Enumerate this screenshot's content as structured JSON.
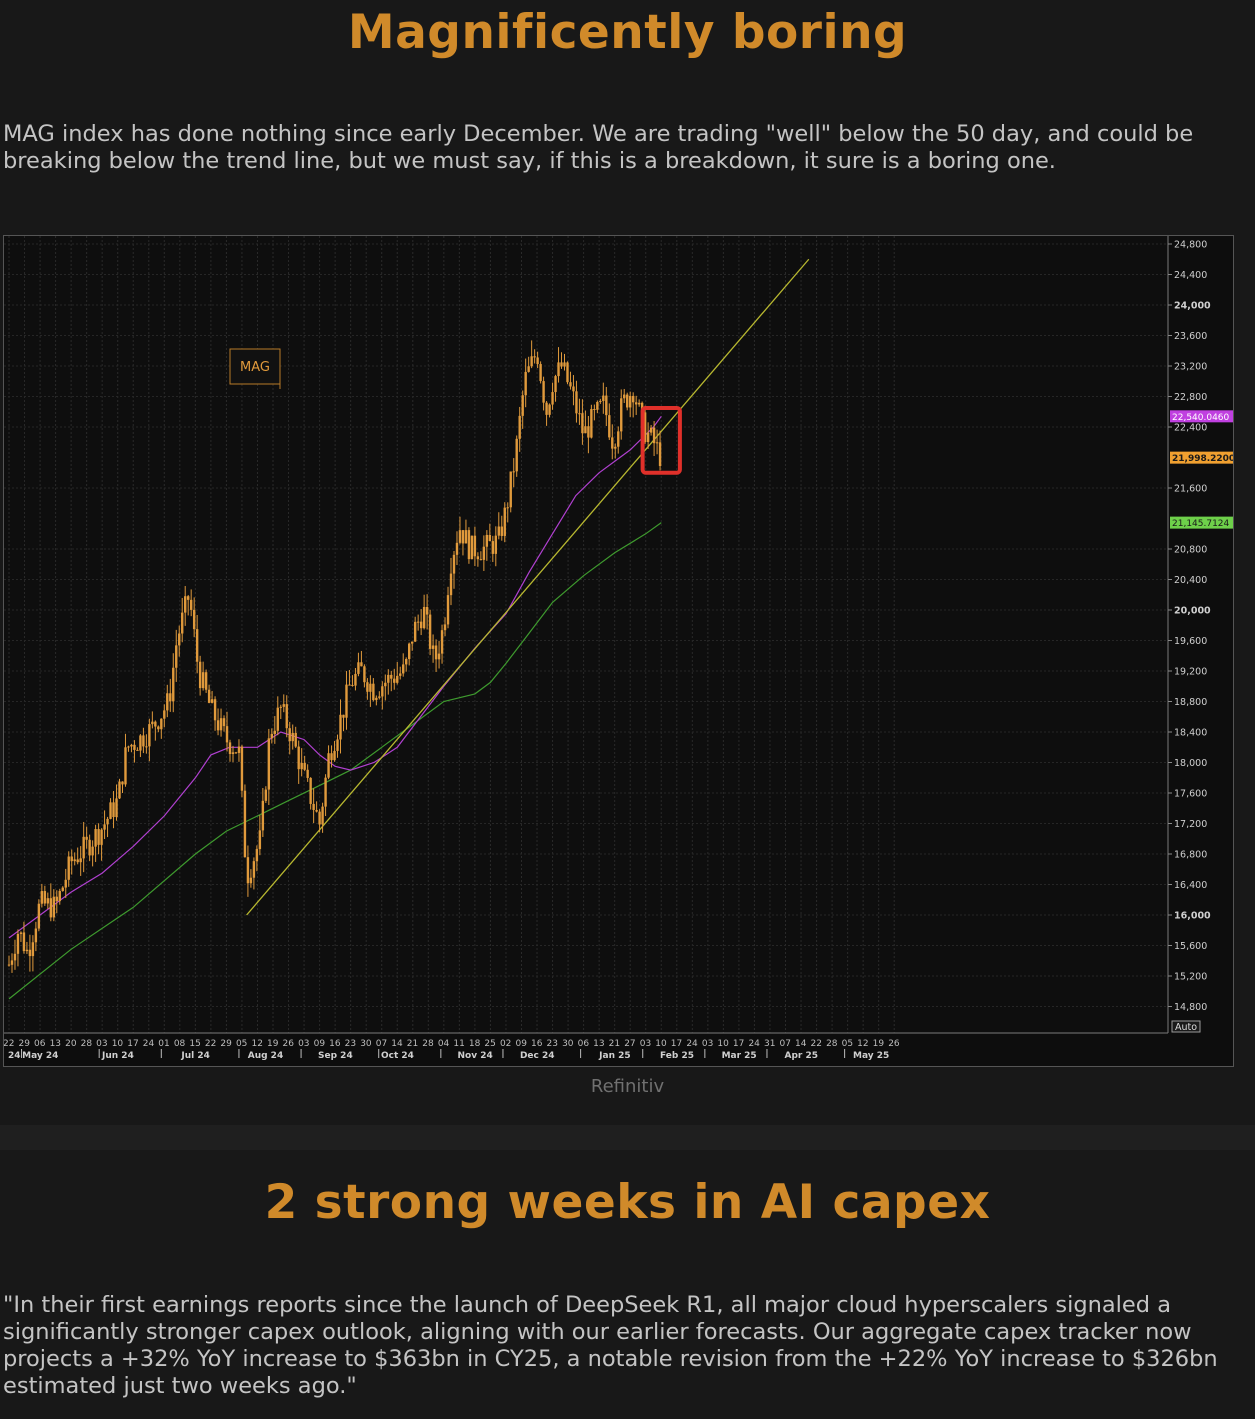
{
  "section1": {
    "title": "Magnificently boring",
    "body": "MAG index has done nothing since early December. We are trading \"well\" below the 50 day, and could be breaking below the trend line, but we must say, if this is a breakdown, it sure is a boring one.",
    "source": "Refinitiv"
  },
  "section2": {
    "title": "2 strong weeks in AI capex",
    "body": "\"In their first earnings reports since the launch of DeepSeek R1, all major cloud hyperscalers signaled a significantly stronger capex outlook, aligning with our earlier forecasts. Our aggregate capex tracker now projects a +32% YoY increase to $363bn in CY25, a notable revision from the +22% YoY increase to $326bn estimated just two weeks ago.\""
  },
  "colors": {
    "title": "#d08a2a",
    "candle": "#e09a3c",
    "ma50": "#b040d0",
    "ma200": "#3e9a2e",
    "trend": "#b8b830",
    "highlight": "#e0302a",
    "tag_ma50": "#c040e0",
    "tag_price": "#f0a030",
    "tag_ma200": "#6ed04a"
  },
  "chart_data": {
    "type": "candlestick",
    "series_name": "MAG",
    "source": "Refinitiv",
    "ylim": [
      14600,
      24900
    ],
    "y_ticks": [
      {
        "v": 24800,
        "label": "24,800",
        "bold": false
      },
      {
        "v": 24400,
        "label": "24,400",
        "bold": false
      },
      {
        "v": 24000,
        "label": "24,000",
        "bold": true
      },
      {
        "v": 23600,
        "label": "23,600",
        "bold": false
      },
      {
        "v": 23200,
        "label": "23,200",
        "bold": false
      },
      {
        "v": 22800,
        "label": "22,800",
        "bold": false
      },
      {
        "v": 22400,
        "label": "22,400",
        "bold": false
      },
      {
        "v": 21600,
        "label": "21,600",
        "bold": false
      },
      {
        "v": 20800,
        "label": "20,800",
        "bold": false
      },
      {
        "v": 20400,
        "label": "20,400",
        "bold": false
      },
      {
        "v": 20000,
        "label": "20,000",
        "bold": true
      },
      {
        "v": 19600,
        "label": "19,600",
        "bold": false
      },
      {
        "v": 19200,
        "label": "19,200",
        "bold": false
      },
      {
        "v": 18800,
        "label": "18,800",
        "bold": false
      },
      {
        "v": 18400,
        "label": "18,400",
        "bold": false
      },
      {
        "v": 18000,
        "label": "18,000",
        "bold": false
      },
      {
        "v": 17600,
        "label": "17,600",
        "bold": false
      },
      {
        "v": 17200,
        "label": "17,200",
        "bold": false
      },
      {
        "v": 16800,
        "label": "16,800",
        "bold": false
      },
      {
        "v": 16400,
        "label": "16,400",
        "bold": false
      },
      {
        "v": 16000,
        "label": "16,000",
        "bold": true
      },
      {
        "v": 15600,
        "label": "15,600",
        "bold": false
      },
      {
        "v": 15200,
        "label": "15,200",
        "bold": false
      },
      {
        "v": 14800,
        "label": "14,800",
        "bold": false
      }
    ],
    "y_scale_button": "Auto",
    "x_days": [
      "22",
      "29",
      "06",
      "13",
      "20",
      "28",
      "03",
      "10",
      "17",
      "24",
      "01",
      "08",
      "15",
      "22",
      "29",
      "05",
      "12",
      "19",
      "26",
      "03",
      "09",
      "16",
      "23",
      "30",
      "07",
      "14",
      "21",
      "28",
      "04",
      "11",
      "18",
      "25",
      "02",
      "09",
      "16",
      "23",
      "30",
      "06",
      "13",
      "21",
      "27",
      "03",
      "10",
      "17",
      "24",
      "03",
      "10",
      "17",
      "24",
      "31",
      "07",
      "14",
      "22",
      "28",
      "05",
      "12",
      "19",
      "26"
    ],
    "x_months": [
      {
        "label": "24",
        "at": 0
      },
      {
        "label": "May 24",
        "at": 1.5
      },
      {
        "label": "Jun 24",
        "at": 6.5
      },
      {
        "label": "Jul 24",
        "at": 11.5
      },
      {
        "label": "Aug 24",
        "at": 16
      },
      {
        "label": "Sep 24",
        "at": 20.5
      },
      {
        "label": "Oct 24",
        "at": 24.5
      },
      {
        "label": "Nov 24",
        "at": 29.5
      },
      {
        "label": "Dec 24",
        "at": 33.5
      },
      {
        "label": "Jan 25",
        "at": 38.5
      },
      {
        "label": "Feb 25",
        "at": 42.5
      },
      {
        "label": "Mar 25",
        "at": 46.5
      },
      {
        "label": "Apr 25",
        "at": 50.5
      },
      {
        "label": "May 25",
        "at": 55
      }
    ],
    "x_month_boundaries": [
      1,
      6,
      10,
      15,
      19,
      24,
      28,
      32,
      37,
      41,
      45,
      49,
      54
    ],
    "price_path": [
      [
        0,
        15350
      ],
      [
        0.6,
        15800
      ],
      [
        1.2,
        15500
      ],
      [
        2,
        16150
      ],
      [
        3,
        16100
      ],
      [
        4,
        16700
      ],
      [
        5,
        16900
      ],
      [
        6,
        17150
      ],
      [
        7,
        17500
      ],
      [
        7.6,
        18200
      ],
      [
        8.4,
        18300
      ],
      [
        9.2,
        18450
      ],
      [
        10.3,
        18800
      ],
      [
        10.8,
        19600
      ],
      [
        11.6,
        20200
      ],
      [
        12.2,
        19200
      ],
      [
        13,
        18700
      ],
      [
        14,
        18300
      ],
      [
        14.8,
        18150
      ],
      [
        15.3,
        16500
      ],
      [
        16.2,
        17000
      ],
      [
        16.8,
        18400
      ],
      [
        17.5,
        18700
      ],
      [
        18.2,
        18350
      ],
      [
        19,
        17800
      ],
      [
        20,
        17200
      ],
      [
        20.6,
        18100
      ],
      [
        21.4,
        18600
      ],
      [
        22,
        19050
      ],
      [
        22.7,
        19200
      ],
      [
        23.5,
        18950
      ],
      [
        24.5,
        19100
      ],
      [
        25.5,
        19200
      ],
      [
        26,
        19700
      ],
      [
        26.7,
        20000
      ],
      [
        27.4,
        19300
      ],
      [
        28,
        19800
      ],
      [
        28.4,
        20600
      ],
      [
        29,
        21100
      ],
      [
        29.7,
        20800
      ],
      [
        30.5,
        20800
      ],
      [
        31.5,
        20900
      ],
      [
        32,
        21300
      ],
      [
        32.6,
        22000
      ],
      [
        33.2,
        23000
      ],
      [
        34,
        23400
      ],
      [
        34.6,
        22600
      ],
      [
        35,
        23000
      ],
      [
        35.6,
        23200
      ],
      [
        36.3,
        22800
      ],
      [
        37,
        22300
      ],
      [
        37.6,
        22500
      ],
      [
        38.3,
        22700
      ],
      [
        38.9,
        22200
      ],
      [
        39.5,
        22700
      ],
      [
        40.2,
        22900
      ],
      [
        40.8,
        22400
      ],
      [
        41.5,
        22200
      ],
      [
        42,
        21998
      ]
    ],
    "candle_spread": 350,
    "candles_per_day": 1.35,
    "ma50": [
      [
        0,
        15700
      ],
      [
        2,
        16000
      ],
      [
        4,
        16300
      ],
      [
        6,
        16550
      ],
      [
        8,
        16900
      ],
      [
        10,
        17300
      ],
      [
        12,
        17800
      ],
      [
        13,
        18100
      ],
      [
        14.2,
        18200
      ],
      [
        16,
        18200
      ],
      [
        17.5,
        18400
      ],
      [
        19,
        18300
      ],
      [
        20,
        18100
      ],
      [
        21,
        17950
      ],
      [
        22,
        17900
      ],
      [
        23.5,
        18000
      ],
      [
        25,
        18200
      ],
      [
        26.5,
        18600
      ],
      [
        28,
        19000
      ],
      [
        30,
        19500
      ],
      [
        32,
        19950
      ],
      [
        33.5,
        20500
      ],
      [
        35,
        21000
      ],
      [
        36.5,
        21500
      ],
      [
        38,
        21800
      ],
      [
        40,
        22100
      ],
      [
        41.5,
        22400
      ],
      [
        42,
        22540
      ]
    ],
    "ma200": [
      [
        0,
        14900
      ],
      [
        4,
        15550
      ],
      [
        8,
        16100
      ],
      [
        12,
        16800
      ],
      [
        14,
        17100
      ],
      [
        16,
        17300
      ],
      [
        18,
        17500
      ],
      [
        20,
        17700
      ],
      [
        22,
        17900
      ],
      [
        24,
        18200
      ],
      [
        26,
        18500
      ],
      [
        28,
        18800
      ],
      [
        30,
        18900
      ],
      [
        31,
        19050
      ],
      [
        32,
        19300
      ],
      [
        33.5,
        19700
      ],
      [
        35,
        20100
      ],
      [
        37,
        20450
      ],
      [
        39,
        20750
      ],
      [
        41,
        21000
      ],
      [
        42,
        21146
      ]
    ],
    "trendline": [
      [
        15.3,
        16000
      ],
      [
        51.5,
        24600
      ]
    ],
    "last_values": [
      {
        "name": "ma50",
        "value": "22,540.0460",
        "v": 22540
      },
      {
        "name": "price",
        "value": "21,998.2200",
        "v": 21998
      },
      {
        "name": "ma200",
        "value": "21,145.7124",
        "v": 21146
      }
    ],
    "highlight_box": {
      "x0": 40.8,
      "x1": 43.2,
      "v0": 22650,
      "v1": 21800
    },
    "legend": "MAG"
  }
}
